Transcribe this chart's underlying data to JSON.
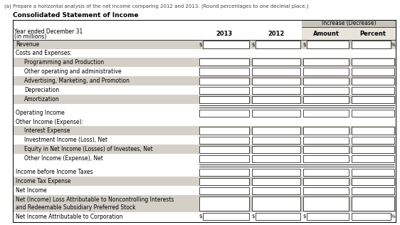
{
  "title_note": "(a) Prepare a horizontal analysis of the net income comparing 2012 and 2013. (Round percentages to one decimal place.)",
  "table_title": "Consolidated Statement of Income",
  "header_increase": "Increase (Decrease)",
  "rows": [
    {
      "label": "Revenue",
      "indent": 0,
      "shaded": true,
      "prefix_cols": [
        0,
        1,
        2
      ],
      "suffix_col": 3,
      "has_boxes": true
    },
    {
      "label": "Costs and Expenses:",
      "indent": 0,
      "shaded": false,
      "header_only": true
    },
    {
      "label": "Programming and Production",
      "indent": 1,
      "shaded": true,
      "has_boxes": true
    },
    {
      "label": "Other operating and administrative",
      "indent": 1,
      "shaded": false,
      "has_boxes": true
    },
    {
      "label": "Advertising, Marketing, and Promotion",
      "indent": 1,
      "shaded": true,
      "has_boxes": true
    },
    {
      "label": "Depreciation",
      "indent": 1,
      "shaded": false,
      "has_boxes": true
    },
    {
      "label": "Amortization",
      "indent": 1,
      "shaded": true,
      "has_boxes": true
    },
    {
      "label": "",
      "indent": 0,
      "shaded": false,
      "spacer": true,
      "double_line": true
    },
    {
      "label": "Operating Income",
      "indent": 0,
      "shaded": false,
      "has_boxes": true
    },
    {
      "label": "Other Income (Expense):",
      "indent": 0,
      "shaded": false,
      "header_only": true
    },
    {
      "label": "Interest Expense",
      "indent": 1,
      "shaded": true,
      "has_boxes": true
    },
    {
      "label": "Investment Income (Loss), Net",
      "indent": 1,
      "shaded": false,
      "has_boxes": true
    },
    {
      "label": "Equity in Net Income (Losses) of Investees, Net",
      "indent": 1,
      "shaded": true,
      "has_boxes": true
    },
    {
      "label": "Other Income (Expense), Net",
      "indent": 1,
      "shaded": false,
      "has_boxes": true
    },
    {
      "label": "",
      "indent": 0,
      "shaded": false,
      "spacer": true,
      "double_line": true
    },
    {
      "label": "Income before Income Taxes",
      "indent": 0,
      "shaded": false,
      "has_boxes": true
    },
    {
      "label": "Income Tax Expense",
      "indent": 0,
      "shaded": true,
      "has_boxes": true
    },
    {
      "label": "Net Income",
      "indent": 0,
      "shaded": false,
      "has_boxes": true
    },
    {
      "label": "Net (Income) Loss Attributable to Noncontrolling Interests\nand Redeemable Subsidiary Preferred Stock",
      "indent": 0,
      "shaded": true,
      "has_boxes": true,
      "multiline": true
    },
    {
      "label": "Net Income Attributable to Corporation",
      "indent": 0,
      "shaded": false,
      "has_boxes": true,
      "prefix_cols": [
        0,
        1,
        2
      ],
      "suffix_col": 3
    }
  ],
  "bg_color": "#ffffff",
  "shade_color": "#d4d0c8",
  "header_shade": "#c8c4bc",
  "border_color": "#000000",
  "text_color": "#000000",
  "note_color": "#444444"
}
